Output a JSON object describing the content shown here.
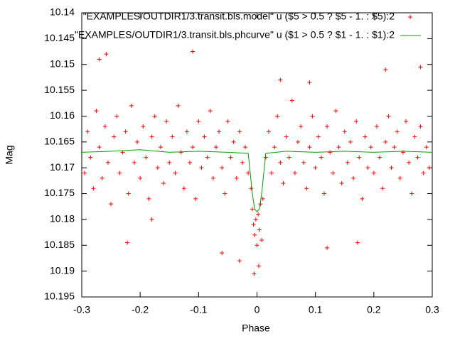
{
  "chart_data": {
    "type": "scatter",
    "xlabel": "Phase",
    "ylabel": "Mag",
    "xlim": [
      -0.3,
      0.3
    ],
    "ylim": [
      10.195,
      10.14
    ],
    "xticks": [
      -0.3,
      -0.2,
      -0.1,
      0,
      0.1,
      0.2,
      0.3
    ],
    "yticks": [
      10.14,
      10.145,
      10.15,
      10.155,
      10.16,
      10.165,
      10.17,
      10.175,
      10.18,
      10.185,
      10.19,
      10.195
    ],
    "legend": "top-right",
    "series": [
      {
        "name": "\"EXAMPLES/OUTDIR1/3.transit.bls.model\" u ($5 > 0.5 ? $5 - 1. : $5):2",
        "color": "#ff0000",
        "type": "scatter",
        "x": [
          -0.295,
          -0.29,
          -0.285,
          -0.28,
          -0.275,
          -0.27,
          -0.265,
          -0.26,
          -0.255,
          -0.25,
          -0.245,
          -0.24,
          -0.235,
          -0.23,
          -0.225,
          -0.22,
          -0.215,
          -0.21,
          -0.205,
          -0.2,
          -0.195,
          -0.19,
          -0.185,
          -0.18,
          -0.175,
          -0.17,
          -0.165,
          -0.16,
          -0.155,
          -0.15,
          -0.145,
          -0.14,
          -0.135,
          -0.13,
          -0.125,
          -0.12,
          -0.115,
          -0.11,
          -0.105,
          -0.1,
          -0.095,
          -0.09,
          -0.085,
          -0.08,
          -0.075,
          -0.07,
          -0.065,
          -0.06,
          -0.055,
          -0.05,
          -0.045,
          -0.04,
          -0.035,
          -0.03,
          -0.025,
          -0.02,
          -0.015,
          -0.01,
          -0.008,
          -0.006,
          -0.004,
          -0.002,
          0,
          0.002,
          0.004,
          0.006,
          0.008,
          0.01,
          0.015,
          0.02,
          0.025,
          0.03,
          0.035,
          0.04,
          0.045,
          0.05,
          0.055,
          0.06,
          0.065,
          0.07,
          0.075,
          0.08,
          0.085,
          0.09,
          0.095,
          0.1,
          0.105,
          0.11,
          0.115,
          0.12,
          0.125,
          0.13,
          0.135,
          0.14,
          0.145,
          0.15,
          0.155,
          0.16,
          0.165,
          0.17,
          0.175,
          0.18,
          0.185,
          0.19,
          0.195,
          0.2,
          0.205,
          0.21,
          0.215,
          0.22,
          0.225,
          0.23,
          0.235,
          0.24,
          0.245,
          0.25,
          0.255,
          0.26,
          0.265,
          0.27,
          0.275,
          0.28,
          0.285,
          0.29,
          0.295,
          -0.258,
          -0.222,
          -0.11,
          -0.06,
          -0.005,
          0.003,
          0.12,
          0.172,
          0.04,
          -0.18,
          0.28,
          -0.27,
          0.22,
          -0.03,
          0.09
        ],
        "y": [
          10.171,
          10.163,
          10.168,
          10.174,
          10.159,
          10.166,
          10.172,
          10.162,
          10.169,
          10.177,
          10.164,
          10.16,
          10.171,
          10.167,
          10.163,
          10.175,
          10.158,
          10.169,
          10.165,
          10.172,
          10.162,
          10.168,
          10.176,
          10.164,
          10.16,
          10.17,
          10.166,
          10.173,
          10.161,
          10.169,
          10.164,
          10.171,
          10.158,
          10.167,
          10.174,
          10.163,
          10.169,
          10.166,
          10.176,
          10.161,
          10.17,
          10.164,
          10.168,
          10.159,
          10.172,
          10.166,
          10.163,
          10.17,
          10.175,
          10.161,
          10.168,
          10.165,
          10.172,
          10.163,
          10.169,
          10.166,
          10.171,
          10.174,
          10.178,
          10.181,
          10.183,
          10.18,
          10.185,
          10.179,
          10.182,
          10.177,
          10.184,
          10.176,
          10.168,
          10.163,
          10.171,
          10.166,
          10.16,
          10.169,
          10.173,
          10.164,
          10.168,
          10.157,
          10.171,
          10.165,
          10.162,
          10.169,
          10.174,
          10.166,
          10.16,
          10.17,
          10.164,
          10.168,
          10.175,
          10.162,
          10.167,
          10.171,
          10.159,
          10.166,
          10.173,
          10.163,
          10.169,
          10.165,
          10.172,
          10.161,
          10.168,
          10.176,
          10.164,
          10.17,
          10.166,
          10.171,
          10.162,
          10.168,
          10.174,
          10.165,
          10.16,
          10.17,
          10.166,
          10.163,
          10.172,
          10.167,
          10.161,
          10.169,
          10.175,
          10.164,
          10.168,
          10.162,
          10.171,
          10.166,
          10.17,
          10.148,
          10.1845,
          10.1475,
          10.1865,
          10.1905,
          10.189,
          10.1855,
          10.1845,
          10.153,
          10.18,
          10.1505,
          10.149,
          10.151,
          10.188,
          10.1535
        ]
      },
      {
        "name": "\"EXAMPLES/OUTDIR1/3.transit.bls.phcurve\" u ($1 > 0.5 ? $1 - 1. : $1):2",
        "color": "#00a000",
        "type": "line",
        "x": [
          -0.3,
          -0.25,
          -0.2,
          -0.15,
          -0.1,
          -0.05,
          -0.015,
          -0.008,
          -0.004,
          0,
          0.004,
          0.008,
          0.015,
          0.05,
          0.1,
          0.15,
          0.2,
          0.25,
          0.3
        ],
        "y": [
          10.167,
          10.1668,
          10.1665,
          10.167,
          10.1668,
          10.167,
          10.1672,
          10.175,
          10.178,
          10.1785,
          10.178,
          10.175,
          10.1672,
          10.1668,
          10.167,
          10.1668,
          10.167,
          10.1668,
          10.167
        ]
      }
    ]
  }
}
